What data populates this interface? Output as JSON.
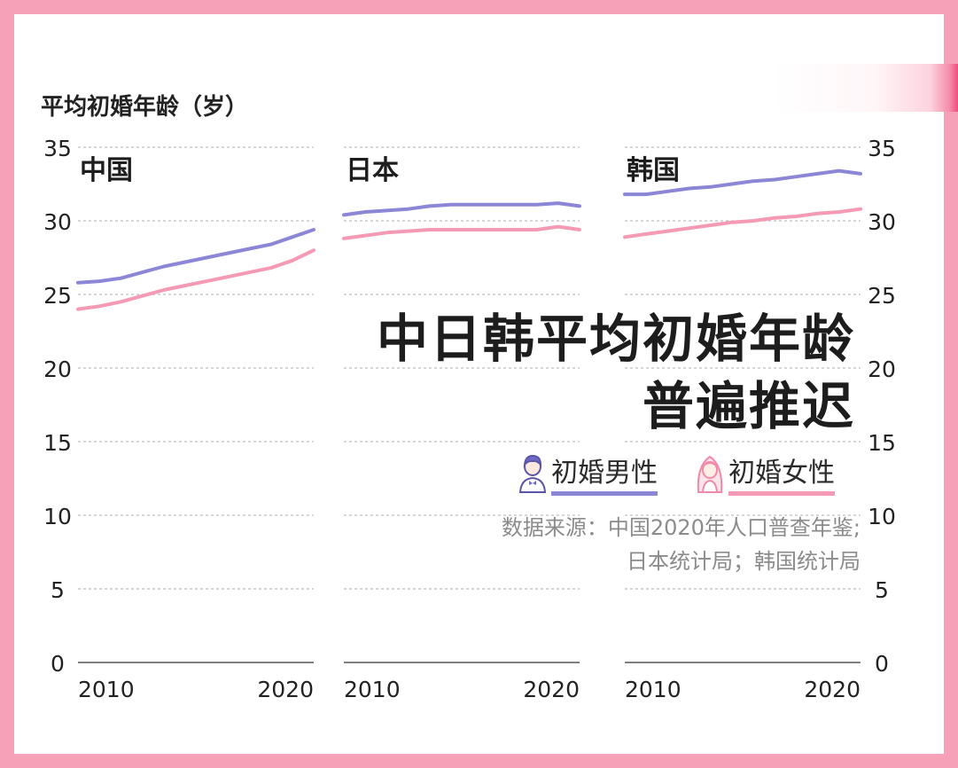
{
  "y_axis_title": "平均初婚年龄（岁）",
  "headline": [
    "中日韩平均初婚年龄",
    "普遍推迟"
  ],
  "legend": [
    {
      "label": "初婚男性",
      "color": "#8b86d6",
      "icon": "groom-icon"
    },
    {
      "label": "初婚女性",
      "color": "#f59ab4",
      "icon": "bride-icon"
    }
  ],
  "source": [
    "数据来源：中国2020年人口普查年鉴;",
    "日本统计局；韩国统计局"
  ],
  "colors": {
    "background": "#f7a1b8",
    "male": "#8b86d6",
    "female": "#f59ab4",
    "grid": "#bdbdbd",
    "text": "#222222"
  },
  "chart_data": {
    "type": "line",
    "ylim": [
      0,
      35
    ],
    "yticks": [
      0,
      5,
      10,
      15,
      20,
      25,
      30,
      35
    ],
    "grid": "dashed horizontal",
    "panels": [
      {
        "title": "中国",
        "xlim": [
          2009,
          2020
        ],
        "xticks": [
          2010,
          2020
        ],
        "series": [
          {
            "name": "初婚男性",
            "x": [
              2009,
              2010,
              2011,
              2012,
              2013,
              2014,
              2015,
              2016,
              2017,
              2018,
              2019,
              2020
            ],
            "y": [
              25.8,
              25.9,
              26.1,
              26.5,
              26.9,
              27.2,
              27.5,
              27.8,
              28.1,
              28.4,
              28.9,
              29.4
            ]
          },
          {
            "name": "初婚女性",
            "x": [
              2009,
              2010,
              2011,
              2012,
              2013,
              2014,
              2015,
              2016,
              2017,
              2018,
              2019,
              2020
            ],
            "y": [
              24.0,
              24.2,
              24.5,
              24.9,
              25.3,
              25.6,
              25.9,
              26.2,
              26.5,
              26.8,
              27.3,
              28.0
            ]
          }
        ]
      },
      {
        "title": "日本",
        "xlim": [
          2009,
          2020
        ],
        "xticks": [
          2010,
          2020
        ],
        "series": [
          {
            "name": "初婚男性",
            "x": [
              2009,
              2010,
              2011,
              2012,
              2013,
              2014,
              2015,
              2016,
              2017,
              2018,
              2019,
              2020
            ],
            "y": [
              30.4,
              30.6,
              30.7,
              30.8,
              31.0,
              31.1,
              31.1,
              31.1,
              31.1,
              31.1,
              31.2,
              31.0
            ]
          },
          {
            "name": "初婚女性",
            "x": [
              2009,
              2010,
              2011,
              2012,
              2013,
              2014,
              2015,
              2016,
              2017,
              2018,
              2019,
              2020
            ],
            "y": [
              28.8,
              29.0,
              29.2,
              29.3,
              29.4,
              29.4,
              29.4,
              29.4,
              29.4,
              29.4,
              29.6,
              29.4
            ]
          }
        ]
      },
      {
        "title": "韩国",
        "xlim": [
          2009,
          2020
        ],
        "xticks": [
          2010,
          2020
        ],
        "series": [
          {
            "name": "初婚男性",
            "x": [
              2009,
              2010,
              2011,
              2012,
              2013,
              2014,
              2015,
              2016,
              2017,
              2018,
              2019,
              2020
            ],
            "y": [
              31.8,
              31.8,
              32.0,
              32.2,
              32.3,
              32.5,
              32.7,
              32.8,
              33.0,
              33.2,
              33.4,
              33.2
            ]
          },
          {
            "name": "初婚女性",
            "x": [
              2009,
              2010,
              2011,
              2012,
              2013,
              2014,
              2015,
              2016,
              2017,
              2018,
              2019,
              2020
            ],
            "y": [
              28.9,
              29.1,
              29.3,
              29.5,
              29.7,
              29.9,
              30.0,
              30.2,
              30.3,
              30.5,
              30.6,
              30.8
            ]
          }
        ]
      }
    ]
  }
}
